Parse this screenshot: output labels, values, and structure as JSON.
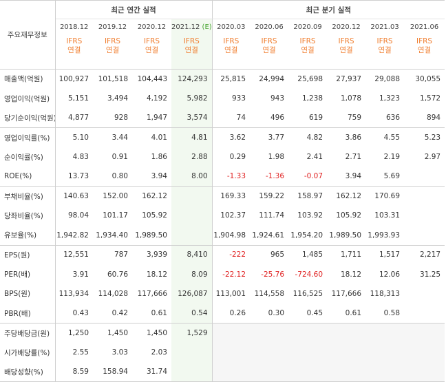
{
  "header": {
    "row_header_label": "주요재무정보",
    "annual_group_label": "최근 연간 실적",
    "quarter_group_label": "최근 분기 실적",
    "periods": [
      "2018.12",
      "2019.12",
      "2020.12",
      "2021.12",
      "2020.03",
      "2020.06",
      "2020.09",
      "2020.12",
      "2021.03",
      "2021.06"
    ],
    "estimate_marker": "(E)",
    "ifrs_top": "IFRS",
    "ifrs_bottom": "연결"
  },
  "rows": [
    {
      "label": "매출액(억원)",
      "values": [
        "100,927",
        "101,518",
        "104,443",
        "124,293",
        "25,815",
        "24,994",
        "25,698",
        "27,937",
        "29,088",
        "30,055"
      ]
    },
    {
      "label": "영업이익(억원)",
      "values": [
        "5,151",
        "3,494",
        "4,192",
        "5,982",
        "933",
        "943",
        "1,238",
        "1,078",
        "1,323",
        "1,572"
      ]
    },
    {
      "label": "당기순이익(억원)",
      "values": [
        "4,877",
        "928",
        "1,947",
        "3,574",
        "74",
        "496",
        "619",
        "759",
        "636",
        "894"
      ]
    },
    {
      "label": "영업이익률(%)",
      "values": [
        "5.10",
        "3.44",
        "4.01",
        "4.81",
        "3.62",
        "3.77",
        "4.82",
        "3.86",
        "4.55",
        "5.23"
      ]
    },
    {
      "label": "순이익률(%)",
      "values": [
        "4.83",
        "0.91",
        "1.86",
        "2.88",
        "0.29",
        "1.98",
        "2.41",
        "2.71",
        "2.19",
        "2.97"
      ]
    },
    {
      "label": "ROE(%)",
      "values": [
        "13.73",
        "0.80",
        "3.94",
        "8.00",
        "-1.33",
        "-1.36",
        "-0.07",
        "3.94",
        "5.69",
        ""
      ]
    },
    {
      "label": "부채비율(%)",
      "values": [
        "140.63",
        "152.00",
        "162.12",
        "",
        "169.33",
        "159.22",
        "158.97",
        "162.12",
        "170.69",
        ""
      ]
    },
    {
      "label": "당좌비율(%)",
      "values": [
        "98.04",
        "101.17",
        "105.92",
        "",
        "102.37",
        "111.74",
        "103.92",
        "105.92",
        "103.31",
        ""
      ]
    },
    {
      "label": "유보율(%)",
      "values": [
        "1,942.82",
        "1,934.40",
        "1,989.50",
        "",
        "1,904.98",
        "1,924.61",
        "1,954.20",
        "1,989.50",
        "1,993.93",
        ""
      ]
    },
    {
      "label": "EPS(원)",
      "values": [
        "12,551",
        "787",
        "3,939",
        "8,410",
        "-222",
        "965",
        "1,485",
        "1,711",
        "1,517",
        "2,217"
      ]
    },
    {
      "label": "PER(배)",
      "values": [
        "3.91",
        "60.76",
        "18.12",
        "8.09",
        "-22.12",
        "-25.76",
        "-724.60",
        "18.12",
        "12.06",
        "31.25"
      ]
    },
    {
      "label": "BPS(원)",
      "values": [
        "113,934",
        "114,028",
        "117,666",
        "126,087",
        "113,001",
        "114,558",
        "116,525",
        "117,666",
        "118,313",
        ""
      ]
    },
    {
      "label": "PBR(배)",
      "values": [
        "0.43",
        "0.42",
        "0.61",
        "0.54",
        "0.26",
        "0.30",
        "0.45",
        "0.61",
        "0.58",
        ""
      ]
    },
    {
      "label": "주당배당금(원)",
      "values": [
        "1,250",
        "1,450",
        "1,450",
        "1,529",
        "",
        "",
        "",
        "",
        "",
        ""
      ]
    },
    {
      "label": "시가배당률(%)",
      "values": [
        "2.55",
        "3.03",
        "2.03",
        "",
        "",
        "",
        "",
        "",
        "",
        ""
      ]
    },
    {
      "label": "배당성향(%)",
      "values": [
        "8.59",
        "158.94",
        "31.74",
        "",
        "",
        "",
        "",
        "",
        "",
        ""
      ]
    }
  ],
  "colors": {
    "negative": "#e02020",
    "ifrs": "#f07d2e",
    "estimate": "#46a52f",
    "estimate_bg": "#f2f9f0"
  }
}
